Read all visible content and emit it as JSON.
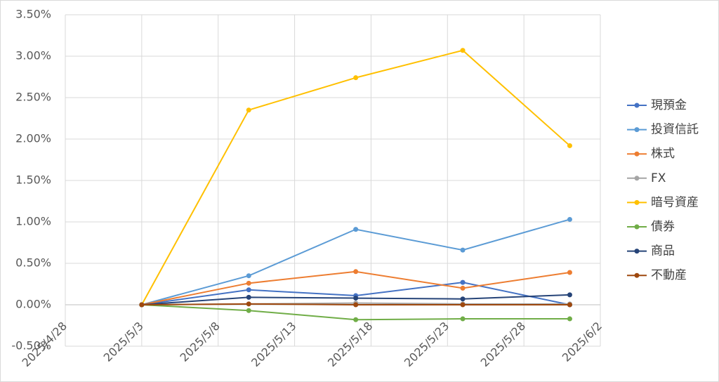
{
  "chart_data": {
    "type": "line",
    "x": [
      "2025/5/3",
      "2025/5/10",
      "2025/5/17",
      "2025/5/24",
      "2025/5/31"
    ],
    "series": [
      {
        "name": "現預金",
        "color": "#4472c4",
        "values": [
          0,
          0.18,
          0.11,
          0.27,
          0
        ]
      },
      {
        "name": "投資信託",
        "color": "#5b9bd5",
        "values": [
          0,
          0.35,
          0.91,
          0.66,
          1.03
        ]
      },
      {
        "name": "株式",
        "color": "#ed7d31",
        "values": [
          0,
          0.26,
          0.4,
          0.2,
          0.39
        ]
      },
      {
        "name": "FX",
        "color": "#a5a5a5",
        "values": [
          0,
          0.01,
          0.02,
          0.01,
          0.01
        ]
      },
      {
        "name": "暗号資産",
        "color": "#ffc000",
        "values": [
          0,
          2.35,
          2.74,
          3.07,
          1.92
        ]
      },
      {
        "name": "債券",
        "color": "#70ad47",
        "values": [
          0,
          -0.07,
          -0.18,
          -0.17,
          -0.17
        ]
      },
      {
        "name": "商品",
        "color": "#264478",
        "values": [
          0,
          0.09,
          0.08,
          0.07,
          0.12
        ]
      },
      {
        "name": "不動産",
        "color": "#9e480e",
        "values": [
          0,
          0.01,
          0,
          0,
          0
        ]
      }
    ],
    "xlim": [
      "2025/4/28",
      "2025/6/2"
    ],
    "xticks": [
      "2025/4/28",
      "2025/5/3",
      "2025/5/8",
      "2025/5/13",
      "2025/5/18",
      "2025/5/23",
      "2025/5/28",
      "2025/6/2"
    ],
    "ylim": [
      -0.5,
      3.5
    ],
    "yticks": [
      {
        "value": -0.5,
        "label": "-0.50%"
      },
      {
        "value": 0,
        "label": "0.00%"
      },
      {
        "value": 0.5,
        "label": "0.50%"
      },
      {
        "value": 1,
        "label": "1.00%"
      },
      {
        "value": 1.5,
        "label": "1.50%"
      },
      {
        "value": 2,
        "label": "2.00%"
      },
      {
        "value": 2.5,
        "label": "2.50%"
      },
      {
        "value": 3,
        "label": "3.00%"
      },
      {
        "value": 3.5,
        "label": "3.50%"
      }
    ],
    "grid": true,
    "legend": "right"
  }
}
